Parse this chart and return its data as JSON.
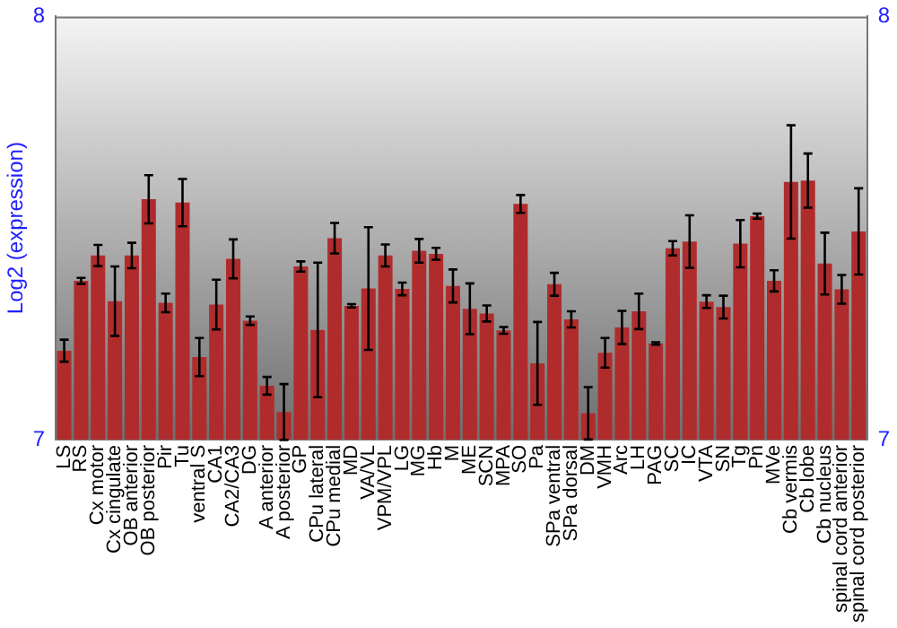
{
  "chart_data": {
    "type": "bar",
    "ylabel": "Log2 (expression)",
    "categories": [
      "LS",
      "RS",
      "Cx motor",
      "Cx cingulate",
      "OB anterior",
      "OB posterior",
      "Pir",
      "Tu",
      "ventral S",
      "CA1",
      "CA2/CA3",
      "DG",
      "A anterior",
      "A posterior",
      "GP",
      "CPu lateral",
      "CPu medial",
      "MD",
      "VA/VL",
      "VPM/VPL",
      "LG",
      "MG",
      "Hb",
      "M",
      "ME",
      "SCN",
      "MPA",
      "SO",
      "Pa",
      "SPa ventral",
      "SPa dorsal",
      "DM",
      "VMH",
      "Arc",
      "LH",
      "PAG",
      "SC",
      "IC",
      "VTA",
      "SN",
      "Tg",
      "Pn",
      "MVe",
      "Cb vermis",
      "Cb lobe",
      "Cb nucleus",
      "spinal cord anterior",
      "spinal cord posterior"
    ],
    "values": [
      7.21,
      7.375,
      7.435,
      7.327,
      7.435,
      7.568,
      7.323,
      7.56,
      7.195,
      7.319,
      7.427,
      7.281,
      7.127,
      7.065,
      7.409,
      7.259,
      7.476,
      7.316,
      7.357,
      7.435,
      7.356,
      7.446,
      7.439,
      7.363,
      7.309,
      7.298,
      7.258,
      7.557,
      7.18,
      7.367,
      7.284,
      7.062,
      7.205,
      7.265,
      7.303,
      7.227,
      7.452,
      7.468,
      7.326,
      7.313,
      7.463,
      7.528,
      7.375,
      7.609,
      7.612,
      7.416,
      7.355,
      7.492
    ],
    "errors": [
      0.026,
      0.007,
      0.025,
      0.082,
      0.03,
      0.057,
      0.022,
      0.056,
      0.045,
      0.059,
      0.046,
      0.01,
      0.021,
      0.066,
      0.012,
      0.159,
      0.036,
      0.004,
      0.145,
      0.026,
      0.015,
      0.028,
      0.014,
      0.039,
      0.06,
      0.019,
      0.008,
      0.021,
      0.098,
      0.027,
      0.019,
      0.062,
      0.035,
      0.039,
      0.042,
      0.003,
      0.017,
      0.062,
      0.015,
      0.027,
      0.056,
      0.006,
      0.025,
      0.134,
      0.064,
      0.073,
      0.034,
      0.102
    ],
    "color": "#b02c2c",
    "ylim": [
      7,
      8
    ],
    "yticks": [
      7,
      8
    ],
    "y2lim": [
      7,
      8
    ],
    "y2ticks": [
      7,
      8
    ],
    "grid": false,
    "legend": false
  }
}
